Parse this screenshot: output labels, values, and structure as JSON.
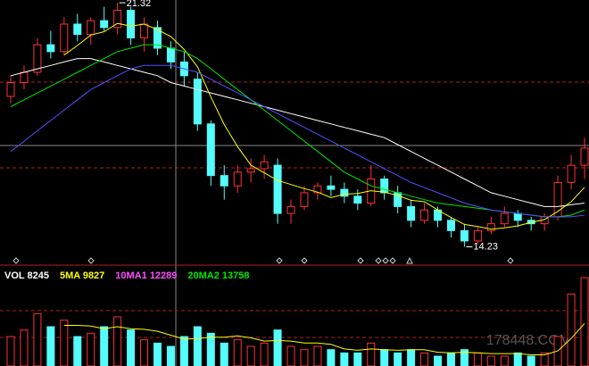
{
  "chart_data": {
    "type": "candlestick",
    "open": [
      18.6,
      19.0,
      19.3,
      20.1,
      19.9,
      20.7,
      20.4,
      20.8,
      20.6,
      21.1,
      20.3,
      20.6,
      20.0,
      19.6,
      19.1,
      17.8,
      16.3,
      16.0,
      16.4,
      16.5,
      16.6,
      15.2,
      15.4,
      15.8,
      16.0,
      15.9,
      15.7,
      15.5,
      16.2,
      15.8,
      15.4,
      15.0,
      15.3,
      15.0,
      14.7,
      14.4,
      14.7,
      14.9,
      15.2,
      15.0,
      14.9,
      15.1,
      16.1,
      16.6
    ],
    "high": [
      19.2,
      19.5,
      20.3,
      20.5,
      20.9,
      21.0,
      20.9,
      21.2,
      21.32,
      21.2,
      20.9,
      20.8,
      20.2,
      19.9,
      19.3,
      17.9,
      16.6,
      16.6,
      16.8,
      16.9,
      16.8,
      15.6,
      16.0,
      16.1,
      16.3,
      16.1,
      15.9,
      16.6,
      16.3,
      16.0,
      15.6,
      15.5,
      15.4,
      15.1,
      14.9,
      14.8,
      15.1,
      15.4,
      15.3,
      15.1,
      15.2,
      16.3,
      16.9,
      17.4
    ],
    "low": [
      18.4,
      18.8,
      19.2,
      19.7,
      19.8,
      20.2,
      20.1,
      20.5,
      20.4,
      20.1,
      19.9,
      19.8,
      19.4,
      18.9,
      17.6,
      16.0,
      15.6,
      15.8,
      16.1,
      16.2,
      14.9,
      14.9,
      15.3,
      15.6,
      15.7,
      15.5,
      15.3,
      15.4,
      15.6,
      15.2,
      14.8,
      14.9,
      14.8,
      14.5,
      14.23,
      14.3,
      14.6,
      14.8,
      14.8,
      14.7,
      14.7,
      15.0,
      15.9,
      16.2
    ],
    "close": [
      19.0,
      19.3,
      20.1,
      19.9,
      20.7,
      20.4,
      20.8,
      20.6,
      21.1,
      20.3,
      20.7,
      20.0,
      19.6,
      19.2,
      17.8,
      16.3,
      16.0,
      16.4,
      16.5,
      16.7,
      15.2,
      15.4,
      15.8,
      16.0,
      15.9,
      15.7,
      15.5,
      16.2,
      15.8,
      15.4,
      15.0,
      15.3,
      15.0,
      14.7,
      14.4,
      14.7,
      14.9,
      15.2,
      15.0,
      14.9,
      15.1,
      16.1,
      16.6,
      17.1
    ],
    "up_color": "#ff3232",
    "down_color": "#54fcfc",
    "ylim": [
      13.75,
      21.4
    ],
    "extremes": [
      21.32,
      14.23
    ],
    "ma_lines": [
      {
        "color": "#ffffff",
        "values": [
          19.2,
          19.3,
          19.4,
          19.5,
          19.6,
          19.7,
          19.7,
          19.6,
          19.5,
          19.4,
          19.3,
          19.2,
          19.0,
          18.9,
          18.8,
          18.7,
          18.6,
          18.5,
          18.4,
          18.3,
          18.2,
          18.1,
          18.0,
          17.9,
          17.8,
          17.7,
          17.6,
          17.5,
          17.4,
          17.2,
          17.0,
          16.8,
          16.6,
          16.4,
          16.2,
          16.0,
          15.8,
          15.7,
          15.6,
          15.5,
          15.4,
          15.4,
          15.45,
          15.5
        ]
      },
      {
        "color": "#ffff00",
        "values": [
          null,
          null,
          null,
          null,
          19.8,
          20.08,
          20.38,
          20.48,
          20.72,
          20.64,
          20.7,
          20.54,
          20.34,
          19.96,
          19.46,
          18.58,
          17.78,
          17.14,
          16.6,
          16.38,
          16.16,
          16.04,
          15.92,
          15.82,
          15.66,
          15.76,
          15.78,
          15.86,
          15.82,
          15.72,
          15.58,
          15.54,
          15.3,
          15.08,
          14.88,
          14.82,
          14.74,
          14.78,
          14.84,
          14.94,
          15.02,
          15.26,
          15.54,
          15.96
        ]
      },
      {
        "color": "#00e600",
        "values": [
          18.3,
          18.5,
          18.7,
          18.9,
          19.1,
          19.3,
          19.5,
          19.7,
          19.9,
          20.0,
          20.1,
          20.1,
          20.0,
          19.9,
          19.7,
          19.4,
          19.1,
          18.8,
          18.5,
          18.2,
          17.9,
          17.6,
          17.3,
          17.0,
          16.7,
          16.4,
          16.2,
          16.0,
          15.9,
          15.8,
          15.7,
          15.6,
          15.5,
          15.45,
          15.4,
          15.35,
          15.3,
          15.25,
          15.2,
          15.15,
          15.1,
          15.1,
          15.15,
          15.3
        ]
      },
      {
        "color": "#5050ff",
        "values": [
          17.0,
          17.3,
          17.6,
          17.9,
          18.2,
          18.5,
          18.8,
          19.0,
          19.2,
          19.4,
          19.5,
          19.5,
          19.5,
          19.4,
          19.3,
          19.1,
          18.9,
          18.7,
          18.5,
          18.3,
          18.1,
          17.9,
          17.7,
          17.5,
          17.3,
          17.1,
          16.9,
          16.7,
          16.5,
          16.3,
          16.1,
          15.95,
          15.8,
          15.65,
          15.5,
          15.4,
          15.3,
          15.25,
          15.2,
          15.15,
          15.1,
          15.1,
          15.1,
          15.15
        ]
      }
    ],
    "volume": {
      "values": [
        9000,
        11000,
        16000,
        12000,
        14000,
        9000,
        10000,
        12000,
        15000,
        11000,
        8000,
        7000,
        6000,
        9000,
        12000,
        10000,
        7000,
        8000,
        6000,
        7000,
        11000,
        6000,
        5000,
        6000,
        5000,
        4000,
        4000,
        7000,
        5000,
        4000,
        5000,
        4000,
        3000,
        4000,
        5000,
        4000,
        3000,
        3000,
        4000,
        3000,
        4000,
        9000,
        22000,
        27000
      ],
      "ylim": [
        0,
        30000
      ],
      "ma_lines": [
        {
          "color": "#ffff00",
          "values": [
            null,
            null,
            null,
            null,
            12400,
            12400,
            12200,
            11400,
            12000,
            11400,
            11200,
            10600,
            9400,
            8200,
            8400,
            8800,
            8800,
            9200,
            8600,
            7600,
            7800,
            7600,
            7000,
            7000,
            6600,
            5200,
            4800,
            5200,
            5000,
            4800,
            5000,
            5000,
            4200,
            4000,
            4200,
            4000,
            3800,
            3800,
            3800,
            3400,
            3400,
            4600,
            8400,
            13000
          ]
        }
      ],
      "legend": [
        {
          "text": "VOL 8245",
          "color": "#ffffff"
        },
        {
          "text": "5MA 9827",
          "color": "#ffff00"
        },
        {
          "text": "10MA1 12289",
          "color": "#ff50ff"
        },
        {
          "text": "20MA2 13758",
          "color": "#00e600"
        }
      ]
    },
    "watermark": "178448.COM"
  }
}
